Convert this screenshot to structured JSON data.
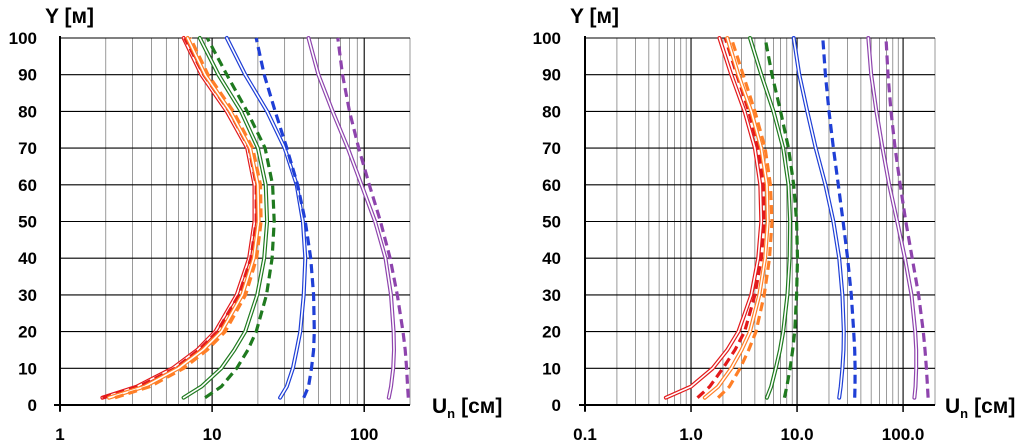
{
  "chart_data": [
    {
      "type": "line",
      "title": "",
      "ylabel": "Y [м]",
      "xlabel_main": "U",
      "xlabel_sub": "n",
      "xlabel_unit": "[см]",
      "xscale": "log",
      "xlim": [
        1,
        200
      ],
      "ylim": [
        0,
        100
      ],
      "ytick_labels": [
        "0",
        "10",
        "20",
        "30",
        "40",
        "50",
        "60",
        "70",
        "80",
        "90",
        "100"
      ],
      "xtick_labels": [
        {
          "value": 1,
          "label": "1"
        },
        {
          "value": 10,
          "label": "10"
        },
        {
          "value": 100,
          "label": "100"
        }
      ],
      "grid": true,
      "series": [
        {
          "name": "red",
          "color": "#e31a1c",
          "style": "double",
          "y": [
            2,
            5,
            10,
            15,
            20,
            30,
            40,
            50,
            60,
            70,
            80,
            90,
            100
          ],
          "x": [
            1.9,
            3.2,
            5.5,
            8.0,
            10.5,
            14.5,
            17.5,
            19.0,
            19.0,
            17.0,
            12.5,
            8.5,
            6.5
          ]
        },
        {
          "name": "red-dashed",
          "color": "#e31a1c",
          "style": "dashed",
          "y": [
            2,
            5,
            10,
            15,
            20,
            30,
            40,
            50,
            60,
            70,
            80,
            90,
            100
          ],
          "x": [
            1.9,
            3.3,
            5.7,
            8.2,
            10.8,
            15.0,
            18.0,
            19.5,
            19.5,
            17.5,
            13.0,
            8.8,
            6.6
          ]
        },
        {
          "name": "orange",
          "color": "#ff7f27",
          "style": "double",
          "y": [
            2,
            5,
            10,
            15,
            20,
            30,
            40,
            50,
            60,
            70,
            80,
            90,
            100
          ],
          "x": [
            2.1,
            3.6,
            6.0,
            8.7,
            11.5,
            15.8,
            18.8,
            20.2,
            20.0,
            17.8,
            13.2,
            9.0,
            6.9
          ]
        },
        {
          "name": "orange-dashed",
          "color": "#ff7f27",
          "style": "dashed",
          "y": [
            2,
            5,
            10,
            15,
            20,
            30,
            40,
            50,
            60,
            70,
            80,
            90,
            100
          ],
          "x": [
            2.3,
            3.9,
            6.5,
            9.3,
            12.2,
            16.6,
            19.6,
            21.0,
            20.8,
            18.5,
            13.8,
            9.4,
            7.2
          ]
        },
        {
          "name": "green",
          "color": "#1f7a1f",
          "style": "double",
          "y": [
            2,
            5,
            10,
            15,
            20,
            30,
            40,
            50,
            60,
            70,
            80,
            90,
            100
          ],
          "x": [
            6.5,
            8.5,
            11.5,
            14.0,
            16.5,
            19.8,
            22.0,
            23.0,
            22.5,
            20.0,
            15.5,
            11.0,
            8.3
          ]
        },
        {
          "name": "green-dashed",
          "color": "#1f7a1f",
          "style": "dashed",
          "y": [
            2,
            5,
            10,
            15,
            20,
            30,
            40,
            50,
            60,
            70,
            80,
            90,
            100
          ],
          "x": [
            9.0,
            11.5,
            14.5,
            17.2,
            19.5,
            22.8,
            24.8,
            25.6,
            25.0,
            22.3,
            17.0,
            12.5,
            9.3
          ]
        },
        {
          "name": "blue",
          "color": "#1f3fd6",
          "style": "double",
          "y": [
            2,
            5,
            10,
            15,
            20,
            30,
            40,
            50,
            60,
            70,
            80,
            90,
            100
          ],
          "x": [
            28,
            31,
            34,
            36,
            38,
            40,
            41,
            39.5,
            36,
            30,
            23,
            16.5,
            12.5
          ]
        },
        {
          "name": "blue-dashed",
          "color": "#1f3fd6",
          "style": "dashed",
          "y": [
            2,
            5,
            10,
            15,
            20,
            30,
            40,
            50,
            60,
            70,
            80,
            90,
            100
          ],
          "x": [
            40,
            43,
            45,
            46.5,
            47,
            46.5,
            44.5,
            41,
            36.5,
            31,
            26,
            22,
            19.5
          ]
        },
        {
          "name": "purple",
          "color": "#8e44ad",
          "style": "double",
          "y": [
            2,
            5,
            10,
            15,
            20,
            30,
            40,
            50,
            60,
            70,
            80,
            90,
            100
          ],
          "x": [
            145,
            150,
            155,
            157,
            156,
            150,
            138,
            118,
            96,
            78,
            62,
            50,
            43
          ]
        },
        {
          "name": "purple-dashed",
          "color": "#8e44ad",
          "style": "dashed",
          "y": [
            2,
            5,
            10,
            15,
            20,
            30,
            40,
            50,
            60,
            70,
            80,
            90,
            100
          ],
          "x": [
            195,
            193,
            190,
            186,
            180,
            165,
            148,
            128,
            108,
            92,
            80,
            72,
            67
          ]
        }
      ]
    },
    {
      "type": "line",
      "title": "",
      "ylabel": "Y [м]",
      "xlabel_main": "U",
      "xlabel_sub": "n",
      "xlabel_unit": "[см]",
      "xscale": "log",
      "xlim": [
        0.1,
        200
      ],
      "ylim": [
        0,
        100
      ],
      "ytick_labels": [
        "0",
        "10",
        "20",
        "30",
        "40",
        "50",
        "60",
        "70",
        "80",
        "90",
        "100"
      ],
      "xtick_labels": [
        {
          "value": 0.1,
          "label": "0.1"
        },
        {
          "value": 1,
          "label": "1.0"
        },
        {
          "value": 10,
          "label": "10.0"
        },
        {
          "value": 100,
          "label": "100.0"
        }
      ],
      "grid": true,
      "series": [
        {
          "name": "red",
          "color": "#e31a1c",
          "style": "double",
          "y": [
            2,
            5,
            10,
            15,
            20,
            30,
            40,
            50,
            60,
            70,
            80,
            90,
            100
          ],
          "x": [
            0.58,
            1.0,
            1.6,
            2.2,
            2.8,
            3.7,
            4.3,
            4.6,
            4.5,
            4.0,
            3.2,
            2.4,
            1.85
          ]
        },
        {
          "name": "red-dashed",
          "color": "#e31a1c",
          "style": "dashed",
          "y": [
            2,
            5,
            10,
            15,
            20,
            30,
            40,
            50,
            60,
            70,
            80,
            90,
            100
          ],
          "x": [
            1.15,
            1.5,
            2.0,
            2.6,
            3.2,
            4.0,
            4.6,
            4.9,
            4.8,
            4.3,
            3.5,
            2.7,
            2.1
          ]
        },
        {
          "name": "orange",
          "color": "#ff7f27",
          "style": "double",
          "y": [
            2,
            5,
            10,
            15,
            20,
            30,
            40,
            50,
            60,
            70,
            80,
            90,
            100
          ],
          "x": [
            1.35,
            1.8,
            2.4,
            3.0,
            3.6,
            4.4,
            5.0,
            5.3,
            5.2,
            4.6,
            3.7,
            2.8,
            2.2
          ]
        },
        {
          "name": "orange-dashed",
          "color": "#ff7f27",
          "style": "dashed",
          "y": [
            2,
            5,
            10,
            15,
            20,
            30,
            40,
            50,
            60,
            70,
            80,
            90,
            100
          ],
          "x": [
            1.8,
            2.3,
            2.9,
            3.5,
            4.1,
            4.9,
            5.5,
            5.8,
            5.6,
            5.0,
            4.0,
            3.1,
            2.4
          ]
        },
        {
          "name": "green",
          "color": "#1f7a1f",
          "style": "double",
          "y": [
            2,
            5,
            10,
            15,
            20,
            30,
            40,
            50,
            60,
            70,
            80,
            90,
            100
          ],
          "x": [
            5.2,
            5.7,
            6.3,
            6.9,
            7.4,
            8.1,
            8.5,
            8.6,
            8.3,
            7.4,
            6.0,
            4.6,
            3.6
          ]
        },
        {
          "name": "green-dashed",
          "color": "#1f7a1f",
          "style": "dashed",
          "y": [
            2,
            5,
            10,
            15,
            20,
            30,
            40,
            50,
            60,
            70,
            80,
            90,
            100
          ],
          "x": [
            7.6,
            8.0,
            8.6,
            9.1,
            9.5,
            9.9,
            10.1,
            9.9,
            9.3,
            8.3,
            7.0,
            5.8,
            5.0
          ]
        },
        {
          "name": "blue",
          "color": "#1f3fd6",
          "style": "double",
          "y": [
            2,
            5,
            10,
            15,
            20,
            30,
            40,
            50,
            60,
            70,
            80,
            90,
            100
          ],
          "x": [
            25,
            25.8,
            26.8,
            27.4,
            27.6,
            26.8,
            25,
            22,
            18.5,
            15,
            12.5,
            10.5,
            9.3
          ]
        },
        {
          "name": "blue-dashed",
          "color": "#1f3fd6",
          "style": "dashed",
          "y": [
            2,
            5,
            10,
            15,
            20,
            30,
            40,
            50,
            60,
            70,
            80,
            90,
            100
          ],
          "x": [
            35,
            35.2,
            35.3,
            35.0,
            34.2,
            32.5,
            30,
            27.2,
            24.5,
            22,
            20,
            18.5,
            17.5
          ]
        },
        {
          "name": "purple",
          "color": "#8e44ad",
          "style": "double",
          "y": [
            2,
            5,
            10,
            15,
            20,
            30,
            40,
            50,
            60,
            70,
            80,
            90,
            100
          ],
          "x": [
            128,
            131,
            133,
            133,
            130,
            120,
            104,
            88,
            74,
            64,
            56,
            50,
            47
          ]
        },
        {
          "name": "purple-dashed",
          "color": "#8e44ad",
          "style": "dashed",
          "y": [
            2,
            5,
            10,
            15,
            20,
            30,
            40,
            50,
            60,
            70,
            80,
            90,
            100
          ],
          "x": [
            172,
            170,
            166,
            161,
            155,
            140,
            122,
            106,
            94,
            84,
            77,
            72,
            69
          ]
        }
      ]
    }
  ]
}
